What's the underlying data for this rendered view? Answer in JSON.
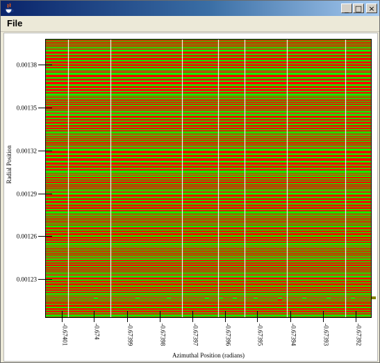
{
  "window": {
    "title": "",
    "menu": {
      "file": "File"
    }
  },
  "controls": {
    "minimize": "_",
    "maximize": "□",
    "close": "×"
  },
  "chart_data": {
    "type": "heatmap",
    "xlabel": "Azimuthal Position (radians)",
    "ylabel": "Radial Position",
    "xlim": [
      -0.674015,
      -0.673915
    ],
    "ylim": [
      0.001203,
      0.001398
    ],
    "x_ticks": [
      -0.67401,
      -0.674,
      -0.67399,
      -0.67398,
      -0.67397,
      -0.67396,
      -0.67395,
      -0.67394,
      -0.67393,
      -0.67392
    ],
    "x_tick_labels": [
      "-0.67401",
      "-0.674",
      "-0.67399",
      "-0.67398",
      "-0.67397",
      "-0.67396",
      "-0.67395",
      "-0.67394",
      "-0.67393",
      "-0.67392"
    ],
    "y_ticks": [
      0.00138,
      0.00135,
      0.00132,
      0.00129,
      0.00126,
      0.00123
    ],
    "y_tick_labels": [
      "0.00138",
      "0.00135",
      "0.00132",
      "0.00129",
      "0.00126",
      "0.00123"
    ],
    "vertical_lines_x": [
      -0.674008,
      -0.673995,
      -0.673973,
      -0.673962,
      -0.673954,
      -0.673941,
      -0.673923,
      -0.6739,
      -0.673881,
      -0.673868
    ],
    "bands": [
      {
        "y_from": 0.001398,
        "y_to": 0.001391,
        "color": "#ff0000"
      },
      {
        "y_from": 0.001391,
        "y_to": 0.001375,
        "color": "#00ff00"
      },
      {
        "y_from": 0.001375,
        "y_to": 0.001357,
        "color": "#ff0000"
      },
      {
        "y_from": 0.001357,
        "y_to": 0.001346,
        "color": "#00ff00"
      },
      {
        "y_from": 0.001346,
        "y_to": 0.001331,
        "color": "#ff0000"
      },
      {
        "y_from": 0.001331,
        "y_to": 0.001322,
        "color": "#00ff00"
      },
      {
        "y_from": 0.001322,
        "y_to": 0.001303,
        "color": "#ff0000"
      },
      {
        "y_from": 0.001303,
        "y_to": 0.001291,
        "color": "#00ff00"
      },
      {
        "y_from": 0.001291,
        "y_to": 0.001275,
        "color": "#ff0000"
      },
      {
        "y_from": 0.001275,
        "y_to": 0.001268,
        "color": "#00ff00"
      },
      {
        "y_from": 0.001268,
        "y_to": 0.001253,
        "color": "#ff0000"
      },
      {
        "y_from": 0.001253,
        "y_to": 0.001245,
        "color": "#00ff00"
      },
      {
        "y_from": 0.001245,
        "y_to": 0.001233,
        "color": "#ff0000"
      },
      {
        "y_from": 0.001233,
        "y_to": 0.001218,
        "color": "#00ff00"
      },
      {
        "y_from": 0.001218,
        "y_to": 0.001203,
        "color": "#808000"
      }
    ],
    "grid": false,
    "legend": "none"
  }
}
